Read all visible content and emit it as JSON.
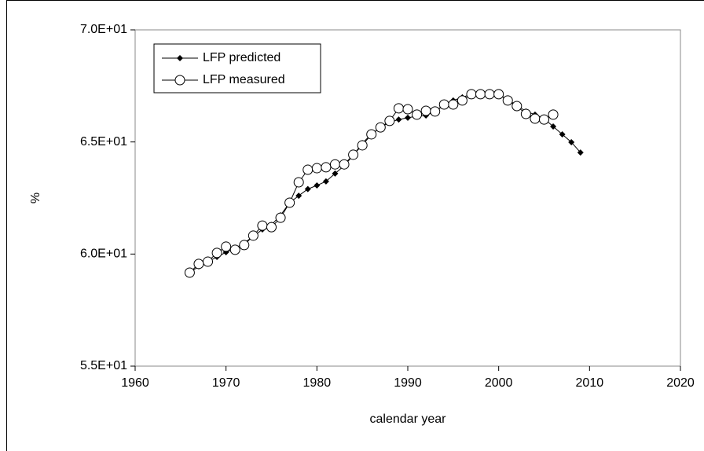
{
  "chart_data": {
    "type": "line",
    "xlabel": "calendar year",
    "ylabel": "%",
    "xlim": [
      1960,
      2020
    ],
    "xticks": [
      1960,
      1970,
      1980,
      1990,
      2000,
      2010,
      2020
    ],
    "ylim": [
      55,
      70
    ],
    "yticks": [
      {
        "value": 55,
        "label": "5.5E+01"
      },
      {
        "value": 60,
        "label": "6.0E+01"
      },
      {
        "value": 65,
        "label": "6.5E+01"
      },
      {
        "value": 70,
        "label": "7.0E+01"
      }
    ],
    "legend": "upper left",
    "series": [
      {
        "name": "LFP predicted",
        "color": "#000000",
        "marker": "diamond",
        "x": [
          1966,
          1967,
          1968,
          1969,
          1970,
          1971,
          1972,
          1973,
          1974,
          1975,
          1976,
          1977,
          1978,
          1979,
          1980,
          1981,
          1982,
          1983,
          1984,
          1985,
          1986,
          1987,
          1988,
          1989,
          1990,
          1991,
          1992,
          1993,
          1994,
          1995,
          1996,
          1997,
          1998,
          1999,
          2000,
          2001,
          2002,
          2003,
          2004,
          2005,
          2006,
          2007,
          2008,
          2009
        ],
        "values": [
          59.17,
          59.45,
          59.66,
          59.87,
          60.08,
          60.26,
          60.5,
          60.78,
          61.1,
          61.3,
          61.73,
          62.29,
          62.6,
          62.9,
          63.06,
          63.24,
          63.59,
          63.94,
          64.4,
          64.95,
          65.34,
          65.65,
          65.87,
          66.0,
          66.08,
          66.15,
          66.18,
          66.36,
          66.64,
          66.85,
          66.99,
          67.13,
          67.2,
          67.2,
          67.13,
          66.88,
          66.64,
          66.36,
          66.22,
          66.04,
          65.69,
          65.34,
          64.99,
          64.53
        ]
      },
      {
        "name": "LFP measured",
        "color": "#000000",
        "marker": "circle",
        "x": [
          1966,
          1967,
          1968,
          1969,
          1970,
          1971,
          1972,
          1973,
          1974,
          1975,
          1976,
          1977,
          1978,
          1979,
          1980,
          1981,
          1982,
          1983,
          1984,
          1985,
          1986,
          1987,
          1988,
          1989,
          1990,
          1991,
          1992,
          1993,
          1994,
          1995,
          1996,
          1997,
          1998,
          1999,
          2000,
          2001,
          2002,
          2003,
          2004,
          2005,
          2006
        ],
        "values": [
          59.17,
          59.56,
          59.66,
          60.05,
          60.33,
          60.19,
          60.4,
          60.82,
          61.27,
          61.2,
          61.62,
          62.29,
          63.2,
          63.76,
          63.83,
          63.87,
          64.0,
          64.0,
          64.43,
          64.85,
          65.34,
          65.65,
          65.94,
          66.5,
          66.46,
          66.22,
          66.39,
          66.36,
          66.67,
          66.67,
          66.85,
          67.13,
          67.13,
          67.13,
          67.13,
          66.85,
          66.6,
          66.25,
          66.04,
          66.0,
          66.22
        ]
      }
    ]
  }
}
